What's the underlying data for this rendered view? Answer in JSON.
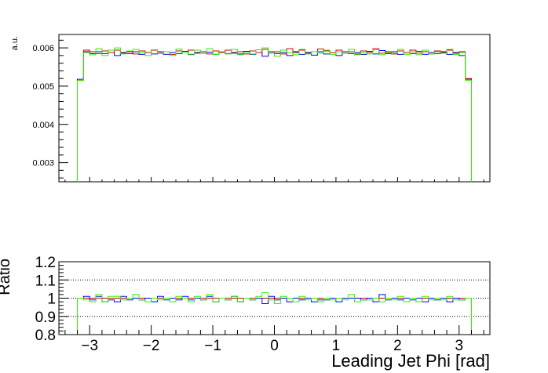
{
  "chart_data": [
    {
      "type": "line",
      "style": "step-histogram",
      "title": "",
      "xlabel": "",
      "ylabel": "a.u.",
      "xlim": [
        -3.5,
        3.5
      ],
      "ylim": [
        0.0025,
        0.00635
      ],
      "yticks": [
        0.003,
        0.004,
        0.005,
        0.006
      ],
      "ytick_labels": [
        "0.003",
        "0.004",
        "0.005",
        "0.006"
      ],
      "x_tick_labels_shown": false,
      "bin_range": [
        -3.2,
        3.2
      ],
      "bin_count": 64,
      "colors": {
        "series_1": "#0000ff",
        "series_2": "#cc0000",
        "series_3": "#33ee00"
      },
      "series": [
        {
          "color": "#0000ff",
          "values": [
            0.00518,
            0.0059,
            0.00585,
            0.0059,
            0.00585,
            0.00588,
            0.0058,
            0.00588,
            0.00585,
            0.0059,
            0.00583,
            0.00588,
            0.00584,
            0.0059,
            0.00583,
            0.00588,
            0.00585,
            0.00591,
            0.00583,
            0.00588,
            0.00586,
            0.00589,
            0.00583,
            0.0059,
            0.00585,
            0.00588,
            0.00584,
            0.00591,
            0.00583,
            0.00588,
            0.00578,
            0.0059,
            0.00585,
            0.00588,
            0.0058,
            0.0059,
            0.00583,
            0.00588,
            0.00581,
            0.0059,
            0.00584,
            0.00588,
            0.0058,
            0.0059,
            0.00585,
            0.00588,
            0.00583,
            0.00591,
            0.00584,
            0.00593,
            0.00585,
            0.0059,
            0.00583,
            0.00588,
            0.00585,
            0.00591,
            0.00583,
            0.00588,
            0.00585,
            0.0059,
            0.00583,
            0.00588,
            0.0058,
            0.00518
          ]
        },
        {
          "color": "#cc0000",
          "values": [
            0.00515,
            0.00594,
            0.0059,
            0.00585,
            0.00592,
            0.00588,
            0.00594,
            0.00586,
            0.0059,
            0.00584,
            0.00592,
            0.00588,
            0.00594,
            0.00586,
            0.0059,
            0.00583,
            0.00592,
            0.00588,
            0.00594,
            0.00586,
            0.0059,
            0.00584,
            0.00592,
            0.00588,
            0.00594,
            0.00586,
            0.0059,
            0.00584,
            0.00592,
            0.00588,
            0.00596,
            0.00586,
            0.0059,
            0.00584,
            0.00598,
            0.00588,
            0.00594,
            0.00586,
            0.0059,
            0.00597,
            0.00592,
            0.00588,
            0.00594,
            0.00586,
            0.0059,
            0.00584,
            0.00592,
            0.00588,
            0.00598,
            0.00586,
            0.0059,
            0.00584,
            0.00592,
            0.00588,
            0.00594,
            0.00586,
            0.0059,
            0.00584,
            0.00592,
            0.00588,
            0.00594,
            0.00586,
            0.0059,
            0.0052
          ]
        },
        {
          "color": "#33ee00",
          "values": [
            0.00515,
            0.00588,
            0.00582,
            0.00598,
            0.0058,
            0.00594,
            0.006,
            0.00584,
            0.00592,
            0.00596,
            0.00588,
            0.0058,
            0.00595,
            0.00585,
            0.0059,
            0.0058,
            0.00597,
            0.00588,
            0.00582,
            0.00594,
            0.00586,
            0.00598,
            0.00583,
            0.0059,
            0.00584,
            0.00596,
            0.00582,
            0.00588,
            0.00584,
            0.00595,
            0.006,
            0.00586,
            0.00578,
            0.00594,
            0.00588,
            0.00582,
            0.00596,
            0.00584,
            0.0059,
            0.00586,
            0.00594,
            0.00583,
            0.0059,
            0.00586,
            0.00596,
            0.00582,
            0.00588,
            0.00584,
            0.00595,
            0.00582,
            0.00588,
            0.00586,
            0.00596,
            0.00583,
            0.0059,
            0.00582,
            0.00594,
            0.00584,
            0.0059,
            0.00586,
            0.00596,
            0.00583,
            0.00588,
            0.00515
          ]
        }
      ]
    },
    {
      "type": "line",
      "style": "step-histogram",
      "title": "",
      "xlabel": "Leading Jet Phi [rad]",
      "ylabel": "Ratio",
      "xlim": [
        -3.5,
        3.5
      ],
      "ylim": [
        0.8,
        1.2
      ],
      "xticks": [
        -3,
        -2,
        -1,
        0,
        1,
        2,
        3
      ],
      "xtick_labels": [
        "−3",
        "−2",
        "−1",
        "0",
        "1",
        "2",
        "3"
      ],
      "yticks": [
        0.8,
        0.9,
        1.0,
        1.1,
        1.2
      ],
      "ytick_labels": [
        "0.8",
        "0.9",
        "1",
        "1.1",
        "1.2"
      ],
      "grid_lines": [
        0.9,
        1.0,
        1.1
      ],
      "grid_style": "dotted",
      "bin_range": [
        -3.2,
        3.2
      ],
      "bin_count": 64,
      "series": [
        {
          "color": "#cc0000",
          "constant": 1.0
        },
        {
          "color": "#0000ff",
          "values": [
            1.0,
            1.01,
            0.99,
            1.01,
            0.98,
            0.99,
            0.98,
            1.01,
            0.99,
            1.0,
            0.99,
            1.0,
            0.98,
            1.01,
            0.99,
            1.0,
            0.99,
            1.01,
            0.99,
            1.0,
            0.99,
            1.01,
            0.98,
            1.0,
            0.99,
            1.01,
            0.98,
            1.0,
            0.99,
            1.0,
            0.97,
            1.01,
            0.99,
            1.0,
            0.98,
            1.0,
            0.99,
            1.0,
            0.98,
            0.99,
            0.99,
            1.0,
            0.98,
            1.0,
            1.0,
            1.0,
            0.99,
            1.0,
            0.98,
            1.02,
            0.99,
            1.0,
            0.99,
            1.0,
            0.99,
            1.0,
            0.98,
            1.0,
            0.99,
            1.0,
            0.98,
            1.0,
            0.99,
            1.0
          ]
        },
        {
          "color": "#33ee00",
          "values": [
            1.0,
            0.99,
            0.98,
            1.02,
            0.98,
            1.01,
            1.01,
            0.99,
            1.0,
            1.02,
            0.99,
            0.98,
            1.0,
            0.99,
            1.0,
            0.98,
            1.01,
            1.0,
            0.98,
            1.01,
            0.99,
            1.02,
            0.98,
            1.0,
            0.99,
            1.01,
            0.98,
            1.0,
            0.99,
            1.01,
            1.03,
            0.99,
            0.97,
            1.01,
            1.0,
            0.98,
            1.01,
            0.99,
            1.0,
            0.98,
            1.0,
            0.99,
            1.0,
            0.99,
            1.02,
            0.98,
            0.99,
            0.99,
            1.0,
            0.98,
            1.0,
            0.99,
            1.01,
            0.98,
            1.0,
            0.98,
            1.01,
            0.99,
            1.0,
            0.99,
            1.01,
            0.99,
            0.99,
            1.0
          ]
        }
      ]
    }
  ]
}
